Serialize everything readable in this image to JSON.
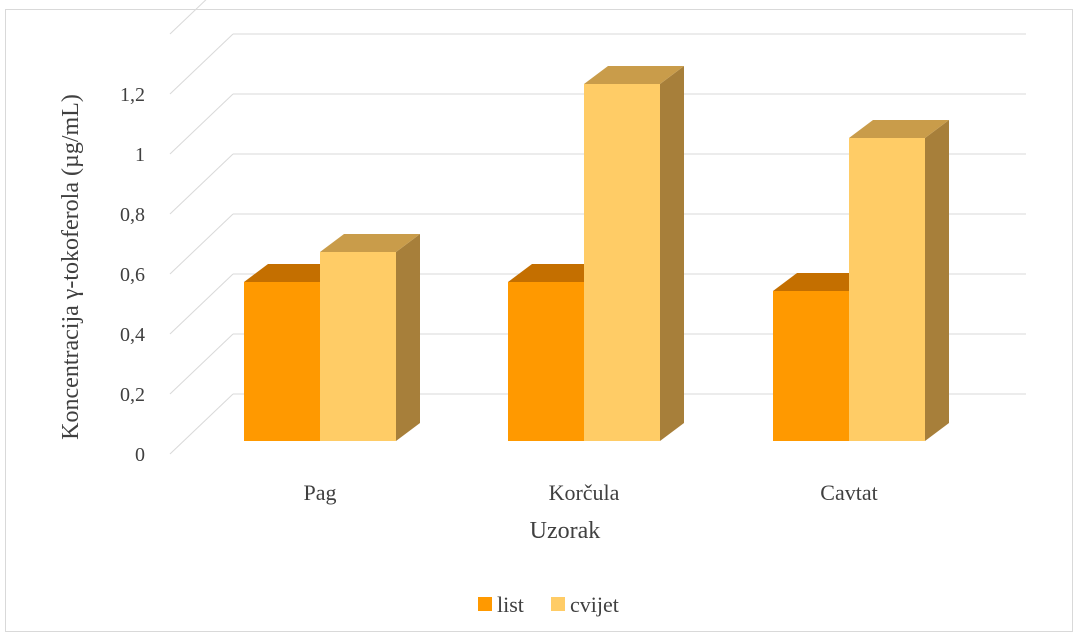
{
  "chart_data": {
    "type": "bar",
    "style": "3d-clustered-column",
    "title": "",
    "xlabel": "Uzorak",
    "ylabel": "Koncentracija γ-tokoferola (µg/mL)",
    "categories": [
      "Pag",
      "Korčula",
      "Cavtat"
    ],
    "series": [
      {
        "name": "list",
        "values": [
          0.53,
          0.53,
          0.5
        ]
      },
      {
        "name": "cvijet",
        "values": [
          0.63,
          1.19,
          1.01
        ]
      }
    ],
    "ylim": [
      0,
      1.3
    ],
    "yticks": [
      "0",
      "0,2",
      "0,4",
      "0,6",
      "0,8",
      "1",
      "1,2"
    ],
    "grid": true,
    "legend_position": "bottom"
  },
  "colors": {
    "list": "#ff9900",
    "list_top": "#c46f00",
    "list_side": "#b86800",
    "cvijet": "#ffcc66",
    "cvijet_top": "#c99c4a",
    "cvijet_side": "#a77f3a",
    "grid": "#d9d9d9",
    "text": "#404040"
  }
}
